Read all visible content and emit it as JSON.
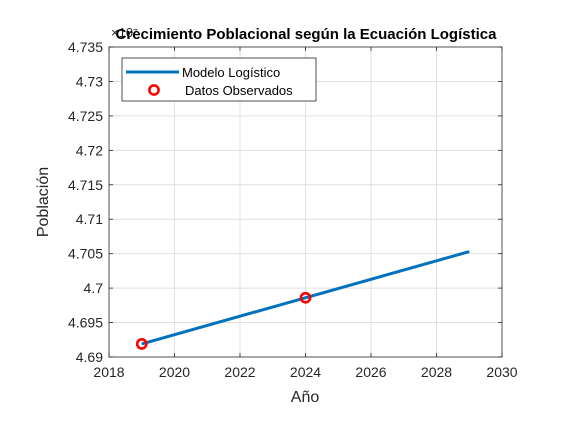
{
  "chart_data": {
    "type": "line",
    "title": "Crecimiento Poblacional según la Ecuación Logística",
    "xlabel": "Año",
    "ylabel": "Población",
    "y_exponent_label": "×10⁷",
    "y_scale_factor": 10000000,
    "xlim": [
      2018,
      2030
    ],
    "ylim": [
      4.69,
      4.735
    ],
    "x_ticks": [
      2018,
      2020,
      2022,
      2024,
      2026,
      2028,
      2030
    ],
    "x_tick_labels": [
      "2018",
      "2020",
      "2022",
      "2024",
      "2026",
      "2028",
      "2030"
    ],
    "y_ticks": [
      4.69,
      4.695,
      4.7,
      4.705,
      4.71,
      4.715,
      4.72,
      4.725,
      4.73,
      4.735
    ],
    "y_tick_labels": [
      "4.69",
      "4.695",
      "4.7",
      "4.705",
      "4.71",
      "4.715",
      "4.72",
      "4.725",
      "4.73",
      "4.735"
    ],
    "grid": true,
    "legend_position": "top-left",
    "series": [
      {
        "name": "Modelo Logístico",
        "kind": "line",
        "color": "#0072BD",
        "x": [
          2019,
          2029
        ],
        "y": [
          4.6919,
          4.7053
        ]
      },
      {
        "name": "Datos Observados",
        "kind": "marker",
        "color": "#FF0000",
        "x": [
          2019,
          2024
        ],
        "y": [
          4.6919,
          4.6986
        ]
      }
    ]
  }
}
